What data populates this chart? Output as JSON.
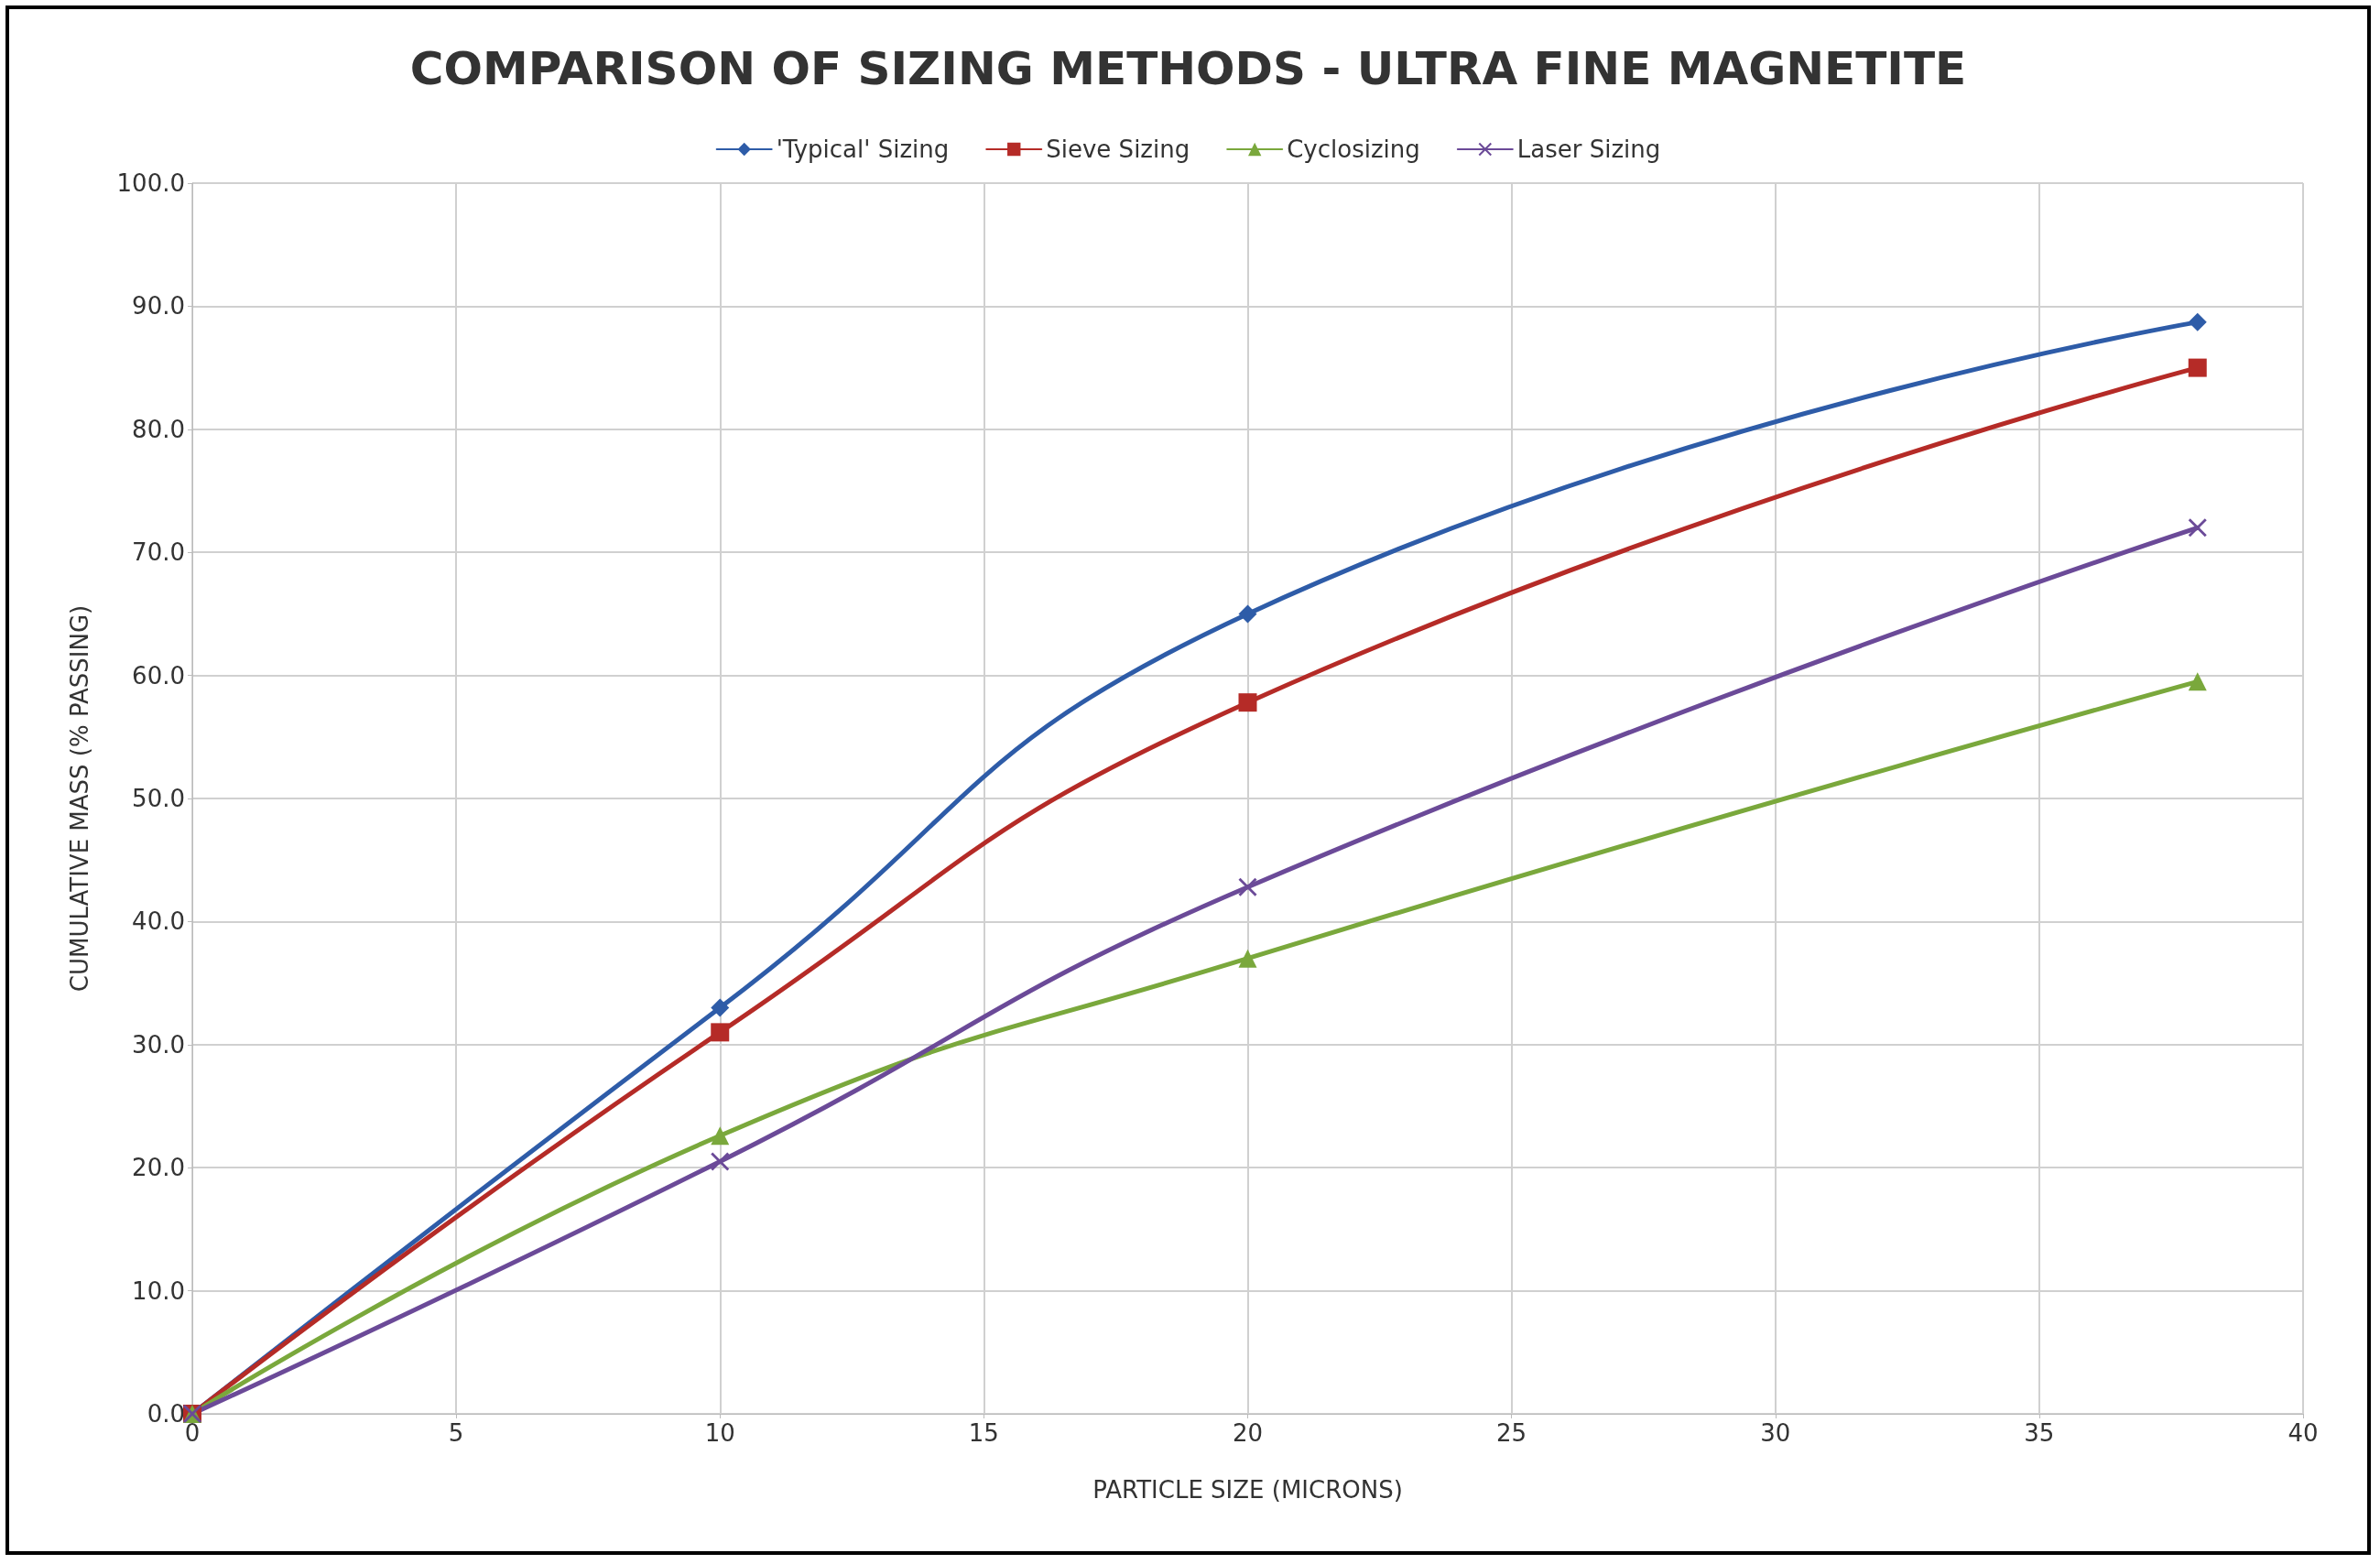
{
  "chart_data": {
    "type": "line",
    "title": "COMPARISON OF SIZING METHODS - ULTRA FINE MAGNETITE",
    "xlabel": "PARTICLE SIZE (MICRONS)",
    "ylabel": "CUMULATIVE MASS (% PASSING)",
    "x": [
      0,
      10,
      20,
      38
    ],
    "series": [
      {
        "name": "'Typical' Sizing",
        "color": "#2e5ca8",
        "marker": "diamond",
        "values": [
          0,
          33,
          65,
          88.7
        ]
      },
      {
        "name": "Sieve Sizing",
        "color": "#b52b27",
        "marker": "square",
        "values": [
          0,
          31,
          57.8,
          85
        ]
      },
      {
        "name": "Cyclosizing",
        "color": "#7aa83c",
        "marker": "triangle",
        "values": [
          0,
          22.6,
          37,
          59.5
        ]
      },
      {
        "name": "Laser Sizing",
        "color": "#6b4a98",
        "marker": "cross",
        "values": [
          0,
          20.5,
          42.8,
          72
        ]
      }
    ],
    "xlim": [
      0,
      40
    ],
    "xticks": [
      0,
      5,
      10,
      15,
      20,
      25,
      30,
      35,
      40
    ],
    "ylim": [
      0,
      100
    ],
    "yticks": [
      {
        "value": 0,
        "label": "0.0"
      },
      {
        "value": 10,
        "label": "10.0"
      },
      {
        "value": 20,
        "label": "20.0"
      },
      {
        "value": 30,
        "label": "30.0"
      },
      {
        "value": 40,
        "label": "40.0"
      },
      {
        "value": 50,
        "label": "50.0"
      },
      {
        "value": 60,
        "label": "60.0"
      },
      {
        "value": 70,
        "label": "70.0"
      },
      {
        "value": 80,
        "label": "80.0"
      },
      {
        "value": 90,
        "label": "90.0"
      },
      {
        "value": 100,
        "label": "100.0"
      }
    ],
    "grid": true,
    "legend": "top",
    "line_style": "solid"
  }
}
